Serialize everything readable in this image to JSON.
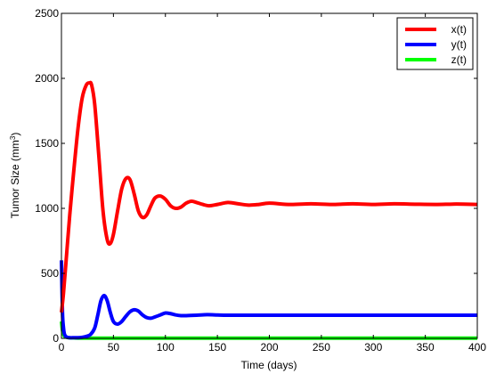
{
  "chart_data": {
    "type": "line",
    "xlabel": "Time (days)",
    "ylabel": "Tumor Size (mm",
    "ylabel_superscript": "3",
    "ylabel_close": ")",
    "xlim": [
      0,
      400
    ],
    "ylim": [
      0,
      2500
    ],
    "xticks": [
      "0",
      "50",
      "100",
      "150",
      "200",
      "250",
      "300",
      "350",
      "400"
    ],
    "yticks": [
      "0",
      "500",
      "1000",
      "1500",
      "2000",
      "2500"
    ],
    "grid": false,
    "legend_position": "top-right",
    "series": [
      {
        "name": "x(t)",
        "color": "#ff0000",
        "x": [
          0,
          2,
          5,
          8,
          12,
          16,
          20,
          24,
          27,
          29,
          32,
          36,
          40,
          44,
          47,
          50,
          54,
          58,
          62,
          66,
          70,
          74,
          78,
          82,
          86,
          90,
          95,
          100,
          105,
          110,
          115,
          120,
          125,
          130,
          136,
          142,
          150,
          160,
          170,
          180,
          190,
          200,
          220,
          240,
          260,
          280,
          300,
          320,
          340,
          360,
          380,
          400
        ],
        "y": [
          200,
          350,
          650,
          950,
          1300,
          1620,
          1850,
          1950,
          1965,
          1950,
          1800,
          1400,
          980,
          760,
          730,
          800,
          980,
          1150,
          1230,
          1220,
          1110,
          980,
          930,
          950,
          1020,
          1080,
          1095,
          1070,
          1020,
          1000,
          1010,
          1040,
          1055,
          1045,
          1030,
          1020,
          1030,
          1045,
          1035,
          1025,
          1030,
          1040,
          1030,
          1035,
          1030,
          1035,
          1030,
          1035,
          1032,
          1030,
          1033,
          1030
        ]
      },
      {
        "name": "y(t)",
        "color": "#0000ff",
        "x": [
          0,
          1,
          2,
          3,
          5,
          8,
          12,
          16,
          20,
          24,
          28,
          32,
          35,
          38,
          41,
          44,
          47,
          50,
          54,
          58,
          62,
          66,
          70,
          74,
          78,
          82,
          86,
          90,
          95,
          100,
          105,
          110,
          115,
          120,
          130,
          140,
          150,
          160,
          180,
          200,
          250,
          300,
          350,
          400
        ],
        "y": [
          600,
          200,
          80,
          30,
          10,
          5,
          5,
          5,
          8,
          15,
          30,
          80,
          180,
          290,
          330,
          290,
          200,
          130,
          110,
          130,
          170,
          205,
          220,
          210,
          180,
          160,
          155,
          165,
          180,
          195,
          190,
          180,
          175,
          175,
          178,
          182,
          180,
          178,
          178,
          178,
          178,
          178,
          178,
          178
        ]
      },
      {
        "name": "z(t)",
        "color": "#00ff00",
        "x": [
          0,
          1,
          2,
          3,
          5,
          8,
          12,
          20,
          50,
          100,
          200,
          300,
          400
        ],
        "y": [
          130,
          60,
          30,
          15,
          8,
          4,
          3,
          2,
          2,
          2,
          2,
          2,
          2
        ]
      }
    ]
  }
}
